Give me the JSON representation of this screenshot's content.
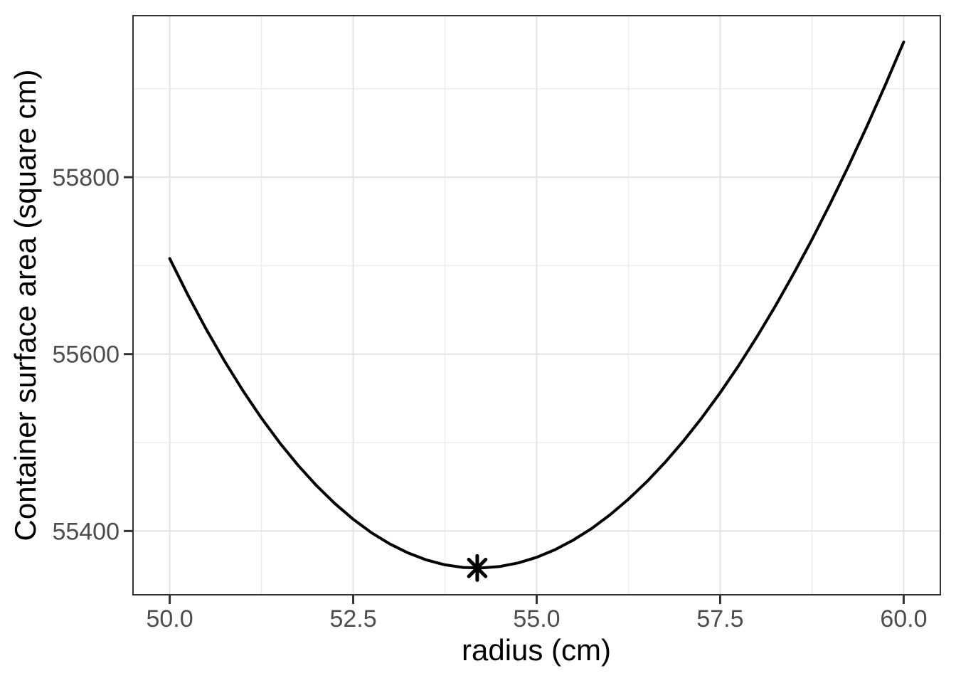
{
  "style": {
    "background": "#ffffff",
    "panel_background": "#ffffff",
    "panel_border_color": "#333333",
    "panel_border_width": 2,
    "grid_major_color": "#e3e3e3",
    "grid_major_width": 2,
    "grid_minor_color": "#ececec",
    "grid_minor_width": 1.4,
    "tick_mark_color": "#333333",
    "tick_mark_width": 3,
    "tick_mark_length": 13,
    "tick_label_color": "#4d4d4d",
    "axis_title_color": "#000000",
    "line_color": "#000000",
    "line_width": 4,
    "marker_color": "#000000",
    "marker_stroke_width": 5,
    "marker_radius": 16
  },
  "chart_data": {
    "type": "line",
    "title": "",
    "xlabel": "radius (cm)",
    "ylabel": "Container surface area (square cm)",
    "xlim": [
      49.5,
      60.5
    ],
    "ylim": [
      55327.9,
      55982.6
    ],
    "grid": "major-and-minor",
    "legend": "none",
    "x_major_ticks": [
      50.0,
      52.5,
      55.0,
      57.5,
      60.0
    ],
    "x_tick_labels": [
      "50.0",
      "52.5",
      "55.0",
      "57.5",
      "60.0"
    ],
    "x_minor_ticks": [
      51.25,
      53.75,
      56.25,
      58.75
    ],
    "y_major_ticks": [
      55400,
      55600,
      55800
    ],
    "y_tick_labels": [
      "55400",
      "55600",
      "55800"
    ],
    "y_minor_ticks": [
      55500,
      55700,
      55900
    ],
    "series": [
      {
        "name": "container-surface-area-curve",
        "x": [
          50,
          50.25,
          50.5,
          50.75,
          51,
          51.25,
          51.5,
          51.75,
          52,
          52.25,
          52.5,
          52.75,
          53,
          53.25,
          53.5,
          53.75,
          54,
          54.25,
          54.5,
          54.75,
          55,
          55.25,
          55.5,
          55.75,
          56,
          56.25,
          56.5,
          56.75,
          57,
          57.25,
          57.5,
          57.75,
          58,
          58.25,
          58.5,
          58.75,
          59,
          59.25,
          59.5,
          59.75,
          60
        ],
        "y": [
          55708.0,
          55666.4,
          55627.7,
          55591.6,
          55558.3,
          55527.6,
          55499.5,
          55474.1,
          55451.3,
          55431.0,
          55413.3,
          55398.0,
          55385.3,
          55375.1,
          55367.2,
          55361.8,
          55358.8,
          55358.2,
          55359.9,
          55363.9,
          55370.3,
          55378.9,
          55389.8,
          55402.9,
          55418.4,
          55436.0,
          55455.7,
          55477.7,
          55501.8,
          55528.0,
          55556.4,
          55586.8,
          55619.4,
          55654.0,
          55690.7,
          55729.3,
          55770.1,
          55812.8,
          55857.5,
          55904.2,
          55952.8
        ]
      }
    ],
    "annotations": [
      {
        "type": "point",
        "shape": "asterisk",
        "name": "minimum-point-marker",
        "x": 54.19,
        "y": 55358.2
      }
    ]
  }
}
